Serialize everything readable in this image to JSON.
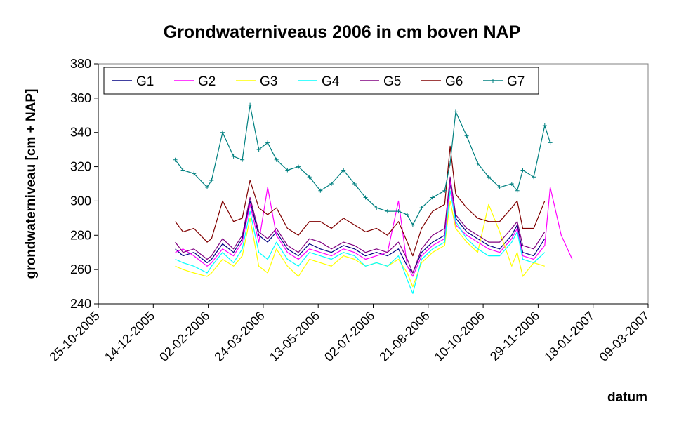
{
  "chart_data": {
    "type": "line",
    "title": "Grondwaterniveaus 2006 in cm boven NAP",
    "xlabel": "datum",
    "ylabel": "grondwaterniveau [cm + NAP]",
    "ylim": [
      240,
      380
    ],
    "yticks": [
      240,
      260,
      280,
      300,
      320,
      340,
      360,
      380
    ],
    "xlim": [
      "2005-10-25",
      "2007-03-09"
    ],
    "xticks": [
      "25-10-2005",
      "14-12-2005",
      "02-02-2006",
      "24-03-2006",
      "13-05-2006",
      "02-07-2006",
      "21-08-2006",
      "10-10-2006",
      "29-11-2006",
      "18-01-2007",
      "09-03-2007"
    ],
    "grid": false,
    "legend": "top",
    "series": [
      {
        "name": "G1",
        "color": "#000080",
        "marker": "none",
        "x": [
          "2006-01-03",
          "2006-01-10",
          "2006-01-20",
          "2006-02-01",
          "2006-02-05",
          "2006-02-15",
          "2006-02-25",
          "2006-03-05",
          "2006-03-12",
          "2006-03-20",
          "2006-03-28",
          "2006-04-05",
          "2006-04-15",
          "2006-04-25",
          "2006-05-05",
          "2006-05-15",
          "2006-05-25",
          "2006-06-05",
          "2006-06-15",
          "2006-06-25",
          "2006-07-05",
          "2006-07-15",
          "2006-07-25",
          "2006-08-02",
          "2006-08-07",
          "2006-08-15",
          "2006-08-25",
          "2006-09-05",
          "2006-09-10",
          "2006-09-15",
          "2006-09-25",
          "2006-10-05",
          "2006-10-15",
          "2006-10-25",
          "2006-11-05",
          "2006-11-10",
          "2006-11-15",
          "2006-11-25",
          "2006-12-05"
        ],
        "y": [
          272,
          268,
          270,
          264,
          266,
          275,
          270,
          278,
          300,
          280,
          276,
          282,
          272,
          268,
          275,
          272,
          270,
          274,
          272,
          268,
          270,
          268,
          272,
          262,
          258,
          270,
          276,
          280,
          310,
          290,
          282,
          278,
          274,
          272,
          280,
          286,
          270,
          268,
          278
        ]
      },
      {
        "name": "G2",
        "color": "#ff00ff",
        "marker": "none",
        "x": [
          "2006-01-03",
          "2006-01-10",
          "2006-01-20",
          "2006-02-01",
          "2006-02-05",
          "2006-02-15",
          "2006-02-25",
          "2006-03-05",
          "2006-03-12",
          "2006-03-20",
          "2006-03-28",
          "2006-04-05",
          "2006-04-15",
          "2006-04-25",
          "2006-05-05",
          "2006-05-15",
          "2006-05-25",
          "2006-06-05",
          "2006-06-15",
          "2006-06-25",
          "2006-07-05",
          "2006-07-15",
          "2006-07-25",
          "2006-08-02",
          "2006-08-07",
          "2006-08-15",
          "2006-08-25",
          "2006-09-05",
          "2006-09-10",
          "2006-09-15",
          "2006-09-25",
          "2006-10-05",
          "2006-10-15",
          "2006-10-25",
          "2006-11-05",
          "2006-11-10",
          "2006-11-15",
          "2006-11-25",
          "2006-12-05",
          "2006-12-10",
          "2006-12-20",
          "2006-12-30"
        ],
        "y": [
          270,
          272,
          268,
          262,
          264,
          272,
          268,
          276,
          298,
          276,
          308,
          280,
          270,
          266,
          272,
          270,
          268,
          272,
          270,
          266,
          268,
          270,
          300,
          262,
          256,
          268,
          274,
          278,
          312,
          286,
          280,
          276,
          272,
          270,
          278,
          284,
          268,
          266,
          274,
          308,
          280,
          266
        ]
      },
      {
        "name": "G3",
        "color": "#ffff00",
        "marker": "none",
        "x": [
          "2006-01-03",
          "2006-01-10",
          "2006-01-20",
          "2006-02-01",
          "2006-02-05",
          "2006-02-15",
          "2006-02-25",
          "2006-03-05",
          "2006-03-12",
          "2006-03-20",
          "2006-03-28",
          "2006-04-05",
          "2006-04-15",
          "2006-04-25",
          "2006-05-05",
          "2006-05-15",
          "2006-05-25",
          "2006-06-05",
          "2006-06-15",
          "2006-06-25",
          "2006-07-05",
          "2006-07-15",
          "2006-07-25",
          "2006-08-02",
          "2006-08-07",
          "2006-08-15",
          "2006-08-25",
          "2006-09-05",
          "2006-09-10",
          "2006-09-15",
          "2006-09-25",
          "2006-10-05",
          "2006-10-15",
          "2006-10-25",
          "2006-11-05",
          "2006-11-10",
          "2006-11-15",
          "2006-11-25",
          "2006-12-05"
        ],
        "y": [
          262,
          260,
          258,
          256,
          258,
          266,
          262,
          268,
          290,
          262,
          258,
          272,
          262,
          256,
          266,
          264,
          262,
          268,
          266,
          262,
          264,
          262,
          266,
          258,
          250,
          264,
          270,
          274,
          300,
          284,
          276,
          270,
          298,
          282,
          262,
          270,
          256,
          264,
          262
        ]
      },
      {
        "name": "G4",
        "color": "#00ffff",
        "marker": "none",
        "x": [
          "2006-01-03",
          "2006-01-10",
          "2006-01-20",
          "2006-02-01",
          "2006-02-05",
          "2006-02-15",
          "2006-02-25",
          "2006-03-05",
          "2006-03-12",
          "2006-03-20",
          "2006-03-28",
          "2006-04-05",
          "2006-04-15",
          "2006-04-25",
          "2006-05-05",
          "2006-05-15",
          "2006-05-25",
          "2006-06-05",
          "2006-06-15",
          "2006-06-25",
          "2006-07-05",
          "2006-07-15",
          "2006-07-25",
          "2006-08-02",
          "2006-08-07",
          "2006-08-15",
          "2006-08-25",
          "2006-09-05",
          "2006-09-10",
          "2006-09-15",
          "2006-09-25",
          "2006-10-05",
          "2006-10-15",
          "2006-10-25",
          "2006-11-05",
          "2006-11-10",
          "2006-11-15",
          "2006-11-25",
          "2006-12-05"
        ],
        "y": [
          266,
          264,
          262,
          258,
          262,
          270,
          264,
          272,
          294,
          270,
          266,
          276,
          266,
          262,
          270,
          268,
          266,
          270,
          268,
          262,
          264,
          262,
          268,
          254,
          246,
          266,
          272,
          276,
          306,
          288,
          278,
          272,
          268,
          268,
          276,
          282,
          266,
          264,
          270
        ]
      },
      {
        "name": "G5",
        "color": "#800080",
        "marker": "none",
        "x": [
          "2006-01-03",
          "2006-01-10",
          "2006-01-20",
          "2006-02-01",
          "2006-02-05",
          "2006-02-15",
          "2006-02-25",
          "2006-03-05",
          "2006-03-12",
          "2006-03-20",
          "2006-03-28",
          "2006-04-05",
          "2006-04-15",
          "2006-04-25",
          "2006-05-05",
          "2006-05-15",
          "2006-05-25",
          "2006-06-05",
          "2006-06-15",
          "2006-06-25",
          "2006-07-05",
          "2006-07-15",
          "2006-07-25",
          "2006-08-02",
          "2006-08-07",
          "2006-08-15",
          "2006-08-25",
          "2006-09-05",
          "2006-09-10",
          "2006-09-15",
          "2006-09-25",
          "2006-10-05",
          "2006-10-15",
          "2006-10-25",
          "2006-11-05",
          "2006-11-10",
          "2006-11-15",
          "2006-11-25",
          "2006-12-05"
        ],
        "y": [
          276,
          270,
          272,
          266,
          268,
          278,
          272,
          280,
          302,
          282,
          278,
          284,
          274,
          270,
          278,
          276,
          272,
          276,
          274,
          270,
          272,
          270,
          276,
          266,
          258,
          272,
          280,
          284,
          314,
          292,
          284,
          280,
          276,
          276,
          284,
          288,
          274,
          272,
          282
        ]
      },
      {
        "name": "G6",
        "color": "#800000",
        "marker": "none",
        "x": [
          "2006-01-03",
          "2006-01-10",
          "2006-01-20",
          "2006-02-01",
          "2006-02-05",
          "2006-02-15",
          "2006-02-25",
          "2006-03-05",
          "2006-03-12",
          "2006-03-20",
          "2006-03-28",
          "2006-04-05",
          "2006-04-15",
          "2006-04-25",
          "2006-05-05",
          "2006-05-15",
          "2006-05-25",
          "2006-06-05",
          "2006-06-15",
          "2006-06-25",
          "2006-07-05",
          "2006-07-15",
          "2006-07-25",
          "2006-08-02",
          "2006-08-07",
          "2006-08-15",
          "2006-08-25",
          "2006-09-05",
          "2006-09-10",
          "2006-09-15",
          "2006-09-25",
          "2006-10-05",
          "2006-10-15",
          "2006-10-25",
          "2006-11-05",
          "2006-11-10",
          "2006-11-15",
          "2006-11-25",
          "2006-12-05"
        ],
        "y": [
          288,
          282,
          284,
          276,
          278,
          300,
          288,
          290,
          312,
          296,
          292,
          296,
          284,
          280,
          288,
          288,
          284,
          290,
          286,
          282,
          284,
          280,
          288,
          276,
          268,
          284,
          294,
          298,
          332,
          304,
          296,
          290,
          288,
          288,
          296,
          300,
          284,
          284,
          300
        ]
      },
      {
        "name": "G7",
        "color": "#008080",
        "marker": "plus",
        "x": [
          "2006-01-03",
          "2006-01-10",
          "2006-01-20",
          "2006-02-01",
          "2006-02-05",
          "2006-02-15",
          "2006-02-25",
          "2006-03-05",
          "2006-03-12",
          "2006-03-20",
          "2006-03-28",
          "2006-04-05",
          "2006-04-15",
          "2006-04-25",
          "2006-05-05",
          "2006-05-15",
          "2006-05-25",
          "2006-06-05",
          "2006-06-15",
          "2006-06-25",
          "2006-07-05",
          "2006-07-15",
          "2006-07-25",
          "2006-08-02",
          "2006-08-07",
          "2006-08-15",
          "2006-08-25",
          "2006-09-05",
          "2006-09-10",
          "2006-09-15",
          "2006-09-25",
          "2006-10-05",
          "2006-10-15",
          "2006-10-25",
          "2006-11-05",
          "2006-11-10",
          "2006-11-15",
          "2006-11-25",
          "2006-12-05",
          "2006-12-10"
        ],
        "y": [
          324,
          318,
          316,
          308,
          312,
          340,
          326,
          324,
          356,
          330,
          334,
          324,
          318,
          320,
          314,
          306,
          310,
          318,
          310,
          302,
          296,
          294,
          294,
          292,
          286,
          296,
          302,
          306,
          322,
          352,
          338,
          322,
          314,
          308,
          310,
          306,
          318,
          314,
          344,
          334
        ]
      }
    ]
  }
}
